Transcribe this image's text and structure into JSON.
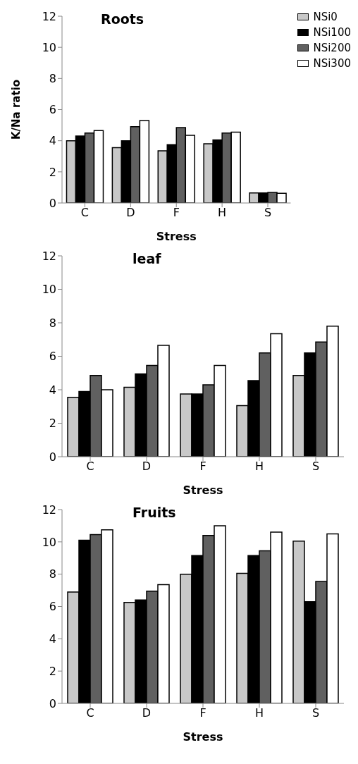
{
  "chart_data": [
    {
      "type": "bar",
      "title": "Roots",
      "xlabel": "Stress",
      "ylabel": "K/Na ratio",
      "categories": [
        "C",
        "D",
        "F",
        "H",
        "S"
      ],
      "ylim": [
        0,
        12
      ],
      "yticks": [
        0,
        2,
        4,
        6,
        8,
        10,
        12
      ],
      "grid": false,
      "legend": "top right",
      "series": [
        {
          "name": "NSi0",
          "color": "#c8c8c8",
          "values": [
            4.0,
            3.55,
            3.35,
            3.8,
            0.65
          ]
        },
        {
          "name": "NSi100",
          "color": "#000000",
          "values": [
            4.3,
            4.0,
            3.75,
            4.05,
            0.65
          ]
        },
        {
          "name": "NSi200",
          "color": "#606060",
          "values": [
            4.5,
            4.9,
            4.85,
            4.5,
            0.68
          ]
        },
        {
          "name": "NSi300",
          "color": "#ffffff",
          "values": [
            4.65,
            5.3,
            4.35,
            4.55,
            0.62
          ]
        }
      ]
    },
    {
      "type": "bar",
      "title": "leaf",
      "xlabel": "Stress",
      "categories": [
        "C",
        "D",
        "F",
        "H",
        "S"
      ],
      "ylim": [
        0,
        12
      ],
      "yticks": [
        0,
        2,
        4,
        6,
        8,
        10,
        12
      ],
      "grid": false,
      "legend": false,
      "series": [
        {
          "color": "#c8c8c8",
          "values": [
            3.55,
            4.15,
            3.75,
            3.05,
            4.85
          ]
        },
        {
          "color": "#000000",
          "values": [
            3.9,
            4.95,
            3.75,
            4.55,
            6.2
          ]
        },
        {
          "color": "#606060",
          "values": [
            4.85,
            5.45,
            4.3,
            6.2,
            6.85
          ]
        },
        {
          "color": "#ffffff",
          "values": [
            4.0,
            6.65,
            5.45,
            7.35,
            7.8
          ]
        }
      ]
    },
    {
      "type": "bar",
      "title": "Fruits",
      "xlabel": "Stress",
      "categories": [
        "C",
        "D",
        "F",
        "H",
        "S"
      ],
      "ylim": [
        0,
        12
      ],
      "yticks": [
        0,
        2,
        4,
        6,
        8,
        10,
        12
      ],
      "grid": false,
      "legend": false,
      "series": [
        {
          "color": "#c8c8c8",
          "values": [
            6.9,
            6.25,
            8.0,
            8.05,
            10.05
          ]
        },
        {
          "color": "#000000",
          "values": [
            10.1,
            6.4,
            9.15,
            9.15,
            6.3
          ]
        },
        {
          "color": "#606060",
          "values": [
            10.45,
            6.95,
            10.4,
            9.45,
            7.55
          ]
        },
        {
          "color": "#ffffff",
          "values": [
            10.75,
            7.35,
            11.0,
            10.6,
            10.5
          ]
        }
      ]
    }
  ]
}
